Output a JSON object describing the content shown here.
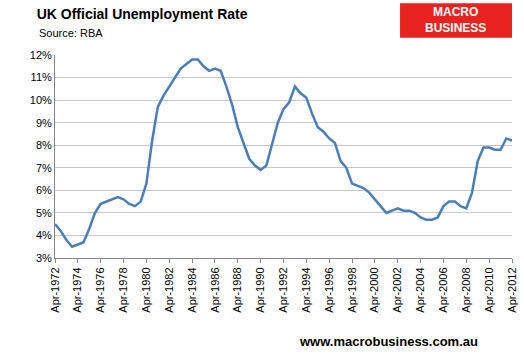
{
  "chart_data": {
    "type": "line",
    "title": "UK Official Unemployment Rate",
    "subtitle": "Source: RBA",
    "logo_text": [
      "MACRO",
      "BUSINESS"
    ],
    "footer": "www.macrobusiness.com.au",
    "categories": [
      "Apr-1972",
      null,
      null,
      null,
      "Apr-1974",
      null,
      null,
      null,
      "Apr-1976",
      null,
      null,
      null,
      "Apr-1978",
      null,
      null,
      null,
      "Apr-1980",
      null,
      null,
      null,
      "Apr-1982",
      null,
      null,
      null,
      "Apr-1984",
      null,
      null,
      null,
      "Apr-1986",
      null,
      null,
      null,
      "Apr-1988",
      null,
      null,
      null,
      "Apr-1990",
      null,
      null,
      null,
      "Apr-1992",
      null,
      null,
      null,
      "Apr-1994",
      null,
      null,
      null,
      "Apr-1996",
      null,
      null,
      null,
      "Apr-1998",
      null,
      null,
      null,
      "Apr-2000",
      null,
      null,
      null,
      "Apr-2002",
      null,
      null,
      null,
      "Apr-2004",
      null,
      null,
      null,
      "Apr-2006",
      null,
      null,
      null,
      "Apr-2008",
      null,
      null,
      null,
      "Apr-2010",
      null,
      null,
      null,
      "Apr-2012"
    ],
    "values": [
      4.5,
      4.2,
      3.8,
      3.5,
      3.6,
      3.7,
      4.3,
      5.0,
      5.4,
      5.5,
      5.6,
      5.7,
      5.6,
      5.4,
      5.3,
      5.5,
      6.3,
      8.2,
      9.7,
      10.2,
      10.6,
      11.0,
      11.4,
      11.6,
      11.8,
      11.8,
      11.5,
      11.3,
      11.4,
      11.3,
      10.6,
      9.8,
      8.8,
      8.1,
      7.4,
      7.1,
      6.9,
      7.1,
      8.0,
      9.0,
      9.6,
      9.9,
      10.6,
      10.3,
      10.1,
      9.4,
      8.8,
      8.6,
      8.3,
      8.1,
      7.3,
      7.0,
      6.3,
      6.2,
      6.1,
      5.9,
      5.6,
      5.3,
      5.0,
      5.1,
      5.2,
      5.1,
      5.1,
      5.0,
      4.8,
      4.7,
      4.7,
      4.8,
      5.3,
      5.5,
      5.5,
      5.3,
      5.2,
      5.9,
      7.3,
      7.9,
      7.9,
      7.8,
      7.8,
      8.3,
      8.2
    ],
    "color": "#4a7ebb",
    "ylim": [
      3,
      12
    ],
    "yticks": [
      {
        "value": 3,
        "label": "3%"
      },
      {
        "value": 4,
        "label": "4%"
      },
      {
        "value": 5,
        "label": "5%"
      },
      {
        "value": 6,
        "label": "6%"
      },
      {
        "value": 7,
        "label": "7%"
      },
      {
        "value": 8,
        "label": "8%"
      },
      {
        "value": 9,
        "label": "9%"
      },
      {
        "value": 10,
        "label": "10%"
      },
      {
        "value": 11,
        "label": "11%"
      },
      {
        "value": 12,
        "label": "12%"
      }
    ],
    "grid": true
  }
}
